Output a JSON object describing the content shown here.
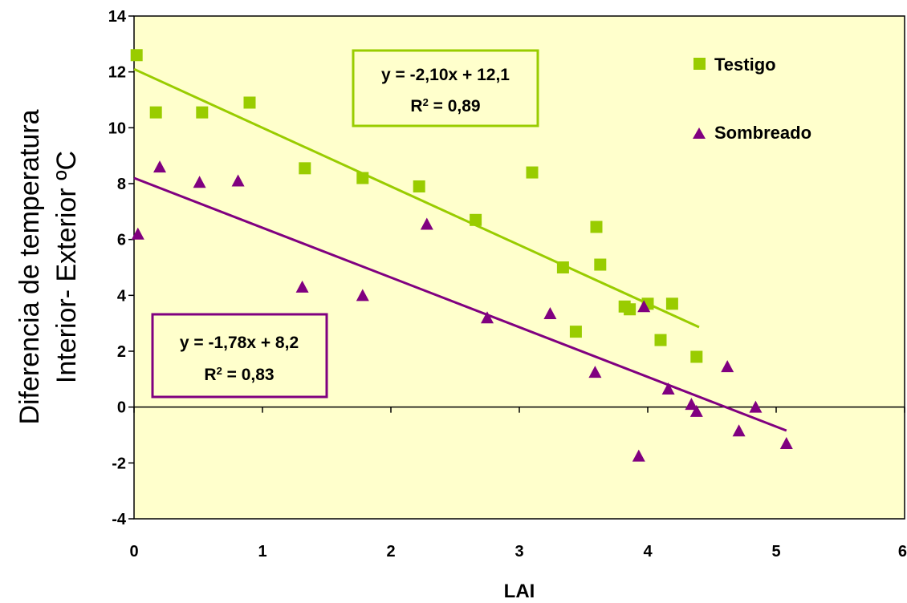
{
  "chart_data": {
    "type": "scatter",
    "xlabel": "LAI",
    "ylabel_lines": [
      "Diferencia de temperatura",
      "Interior- Exterior ºC"
    ],
    "xlim": [
      0,
      6
    ],
    "ylim": [
      -4,
      14
    ],
    "x_ticks": [
      "0",
      "1",
      "2",
      "3",
      "4",
      "5",
      "6"
    ],
    "y_ticks": [
      "-4",
      "-2",
      "0",
      "2",
      "4",
      "6",
      "8",
      "10",
      "12",
      "14"
    ],
    "grid": false,
    "legend_position": "top-right",
    "plot_background": "#ffffcc",
    "series": [
      {
        "name": "Testigo",
        "marker": "square",
        "color": "#99cc00",
        "points": [
          [
            0.02,
            12.6
          ],
          [
            0.17,
            10.55
          ],
          [
            0.53,
            10.55
          ],
          [
            0.9,
            10.9
          ],
          [
            1.33,
            8.55
          ],
          [
            1.78,
            8.2
          ],
          [
            2.22,
            7.9
          ],
          [
            2.66,
            6.7
          ],
          [
            3.1,
            8.4
          ],
          [
            3.34,
            5.0
          ],
          [
            3.44,
            2.7
          ],
          [
            3.6,
            6.45
          ],
          [
            3.63,
            5.1
          ],
          [
            3.82,
            3.6
          ],
          [
            3.86,
            3.5
          ],
          [
            4.0,
            3.7
          ],
          [
            4.1,
            2.4
          ],
          [
            4.19,
            3.7
          ],
          [
            4.38,
            1.8
          ]
        ],
        "trendline": {
          "slope": -2.1,
          "intercept": 12.1,
          "x_range": [
            0,
            4.4
          ],
          "equation": "y = -2,10x + 12,1",
          "r2_label": "R",
          "r2_value": " = 0,89"
        }
      },
      {
        "name": "Sombreado",
        "marker": "triangle",
        "color": "#800080",
        "points": [
          [
            0.03,
            6.2
          ],
          [
            0.2,
            8.6
          ],
          [
            0.51,
            8.05
          ],
          [
            0.81,
            8.1
          ],
          [
            1.31,
            4.3
          ],
          [
            1.78,
            4.0
          ],
          [
            2.28,
            6.55
          ],
          [
            2.75,
            3.2
          ],
          [
            3.24,
            3.35
          ],
          [
            3.59,
            1.25
          ],
          [
            3.93,
            -1.75
          ],
          [
            3.97,
            3.6
          ],
          [
            4.16,
            0.65
          ],
          [
            4.34,
            0.1
          ],
          [
            4.38,
            -0.15
          ],
          [
            4.62,
            1.45
          ],
          [
            4.71,
            -0.85
          ],
          [
            4.84,
            0.0
          ],
          [
            5.08,
            -1.3
          ]
        ],
        "trendline": {
          "slope": -1.78,
          "intercept": 8.2,
          "x_range": [
            0,
            5.08
          ],
          "equation": "y = -1,78x + 8,2",
          "r2_label": "R",
          "r2_value": " = 0,83"
        }
      }
    ]
  },
  "r2_superscript": "2"
}
